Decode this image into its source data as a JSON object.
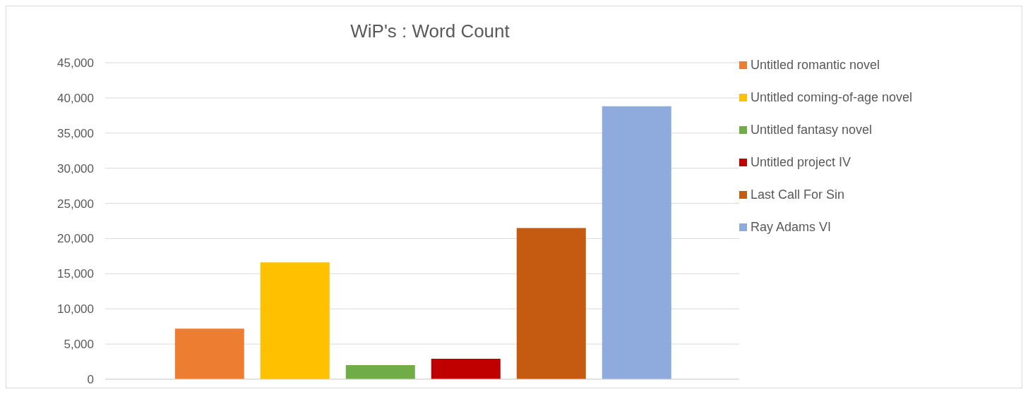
{
  "chart_data": {
    "type": "bar",
    "title": "WiP's : Word Count",
    "categories": [
      null
    ],
    "series": [
      {
        "name": "Untitled romantic novel",
        "color": "#ed7d31",
        "values": [
          7200
        ]
      },
      {
        "name": "Untitled coming-of-age novel",
        "color": "#ffc000",
        "values": [
          16600
        ]
      },
      {
        "name": "Untitled fantasy novel",
        "color": "#70ad47",
        "values": [
          2000
        ]
      },
      {
        "name": "Untitled project IV",
        "color": "#c00000",
        "values": [
          2900
        ]
      },
      {
        "name": "Last Call For Sin",
        "color": "#c55a11",
        "values": [
          21500
        ]
      },
      {
        "name": "Ray Adams VI",
        "color": "#8faadc",
        "values": [
          38800
        ]
      }
    ],
    "ylim": [
      0,
      45000
    ],
    "yticks": [
      0,
      {
        "value": 5000,
        "label": "5,000"
      },
      {
        "value": 10000,
        "label": "10,000"
      },
      {
        "value": 15000,
        "label": "15,000"
      },
      {
        "value": 20000,
        "label": "20,000"
      },
      {
        "value": 25000,
        "label": "25,000"
      },
      {
        "value": 30000,
        "label": "30,000"
      },
      {
        "value": 35000,
        "label": "35,000"
      },
      {
        "value": 40000,
        "label": "40,000"
      },
      {
        "value": 45000,
        "label": "45,000"
      }
    ],
    "grid": "y",
    "legend": "right"
  }
}
